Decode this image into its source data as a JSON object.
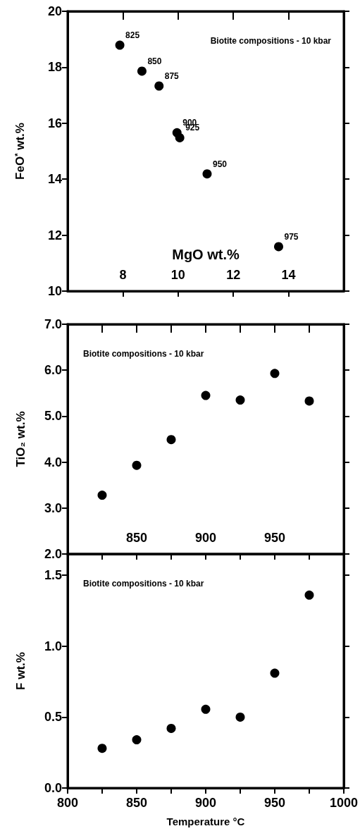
{
  "chart_data": [
    {
      "type": "scatter",
      "xlabel": "MgO wt.%",
      "ylabel": "FeO$^{*}$ wt.%",
      "x": [
        7.89,
        8.69,
        9.31,
        9.96,
        10.06,
        11.05,
        13.64
      ],
      "series": [
        {
          "color": "#000000",
          "values": [
            18.79,
            17.86,
            17.33,
            15.66,
            15.48,
            14.19,
            11.59
          ]
        }
      ],
      "xlim": [
        6,
        16
      ],
      "xticks": [
        8,
        10,
        12,
        14
      ],
      "ylim": [
        10,
        20
      ],
      "yticks": [
        10,
        12,
        14,
        16,
        18,
        20
      ],
      "marker": "circle",
      "annotations": [
        "Biotite compositions - 10 kbar",
        {
          "text": "825",
          "x": 7.89,
          "y": 18.79
        },
        {
          "text": "850",
          "x": 8.69,
          "y": 17.86
        },
        {
          "text": "875",
          "x": 9.31,
          "y": 17.33
        },
        {
          "text": "900",
          "x": 9.96,
          "y": 15.66
        },
        {
          "text": "925",
          "x": 10.06,
          "y": 15.48
        },
        {
          "text": "950",
          "x": 11.05,
          "y": 14.19
        },
        {
          "text": "975",
          "x": 13.64,
          "y": 11.59
        }
      ]
    },
    {
      "type": "scatter",
      "ylabel": "TiO₂ wt.%",
      "x": [
        825,
        850,
        875,
        900,
        925,
        950,
        975
      ],
      "series": [
        {
          "color": "#000000",
          "values": [
            3.28,
            3.93,
            4.49,
            5.45,
            5.35,
            5.93,
            5.33
          ]
        }
      ],
      "xlim": [
        800,
        1000
      ],
      "xticks": [
        {
          "value": 825,
          "label": null
        },
        850,
        {
          "value": 875,
          "label": null
        },
        900,
        {
          "value": 925,
          "label": null
        },
        950,
        {
          "value": 975,
          "label": null
        }
      ],
      "ylim": [
        2,
        7
      ],
      "yticks": [
        {
          "value": 2,
          "label": "2.0"
        },
        {
          "value": 3,
          "label": "3.0"
        },
        {
          "value": 4,
          "label": "4.0"
        },
        {
          "value": 5,
          "label": "5.0"
        },
        {
          "value": 6,
          "label": "6.0"
        },
        {
          "value": 7,
          "label": "7.0"
        }
      ],
      "marker": "circle",
      "annotations": [
        "Biotite compositions - 10 kbar"
      ]
    },
    {
      "type": "scatter",
      "xlabel": "Temperature °C",
      "ylabel": "F wt.%",
      "x": [
        825,
        850,
        875,
        900,
        925,
        950,
        975
      ],
      "series": [
        {
          "color": "#000000",
          "values": [
            0.28,
            0.34,
            0.42,
            0.555,
            0.5,
            0.81,
            1.36
          ]
        }
      ],
      "xlim": [
        800,
        1000
      ],
      "xticks": [
        800,
        {
          "value": 825,
          "label": null
        },
        850,
        {
          "value": 875,
          "label": null
        },
        900,
        {
          "value": 925,
          "label": null
        },
        950,
        {
          "value": 975,
          "label": null
        },
        1000
      ],
      "ylim": [
        0,
        1.65
      ],
      "yticks": [
        {
          "value": 0,
          "label": "0.0"
        },
        {
          "value": 0.5,
          "label": "0.5"
        },
        {
          "value": 1,
          "label": "1.0"
        },
        {
          "value": 1.5,
          "label": "1.5"
        }
      ],
      "marker": "circle",
      "annotations": [
        "Biotite compositions - 10 kbar"
      ]
    }
  ]
}
